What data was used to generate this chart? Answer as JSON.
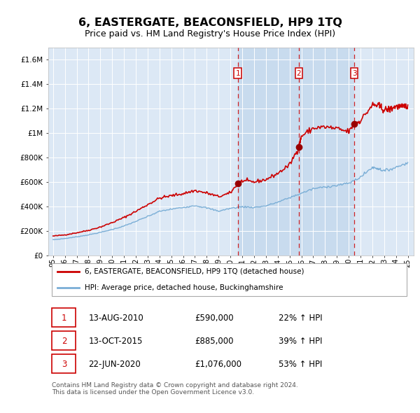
{
  "title": "6, EASTERGATE, BEACONSFIELD, HP9 1TQ",
  "subtitle": "Price paid vs. HM Land Registry's House Price Index (HPI)",
  "title_fontsize": 11.5,
  "subtitle_fontsize": 9,
  "background_color": "#ffffff",
  "plot_bg_color": "#dce8f5",
  "shade_color": "#c8dbee",
  "grid_color": "#ffffff",
  "red_line_color": "#cc0000",
  "blue_line_color": "#7aaed6",
  "sale_marker_color": "#990000",
  "dashed_line_color": "#cc0000",
  "ylim": [
    0,
    1700000
  ],
  "yticks": [
    0,
    200000,
    400000,
    600000,
    800000,
    1000000,
    1200000,
    1400000,
    1600000
  ],
  "ytick_labels": [
    "£0",
    "£200K",
    "£400K",
    "£600K",
    "£800K",
    "£1M",
    "£1.2M",
    "£1.4M",
    "£1.6M"
  ],
  "sales": [
    {
      "date": 2010.62,
      "price": 590000,
      "label": "1"
    },
    {
      "date": 2015.79,
      "price": 885000,
      "label": "2"
    },
    {
      "date": 2020.47,
      "price": 1076000,
      "label": "3"
    }
  ],
  "sale_table": [
    {
      "num": "1",
      "date": "13-AUG-2010",
      "price": "£590,000",
      "change": "22% ↑ HPI"
    },
    {
      "num": "2",
      "date": "13-OCT-2015",
      "price": "£885,000",
      "change": "39% ↑ HPI"
    },
    {
      "num": "3",
      "date": "22-JUN-2020",
      "price": "£1,076,000",
      "change": "53% ↑ HPI"
    }
  ],
  "legend_entries": [
    "6, EASTERGATE, BEACONSFIELD, HP9 1TQ (detached house)",
    "HPI: Average price, detached house, Buckinghamshire"
  ],
  "footer": "Contains HM Land Registry data © Crown copyright and database right 2024.\nThis data is licensed under the Open Government Licence v3.0."
}
